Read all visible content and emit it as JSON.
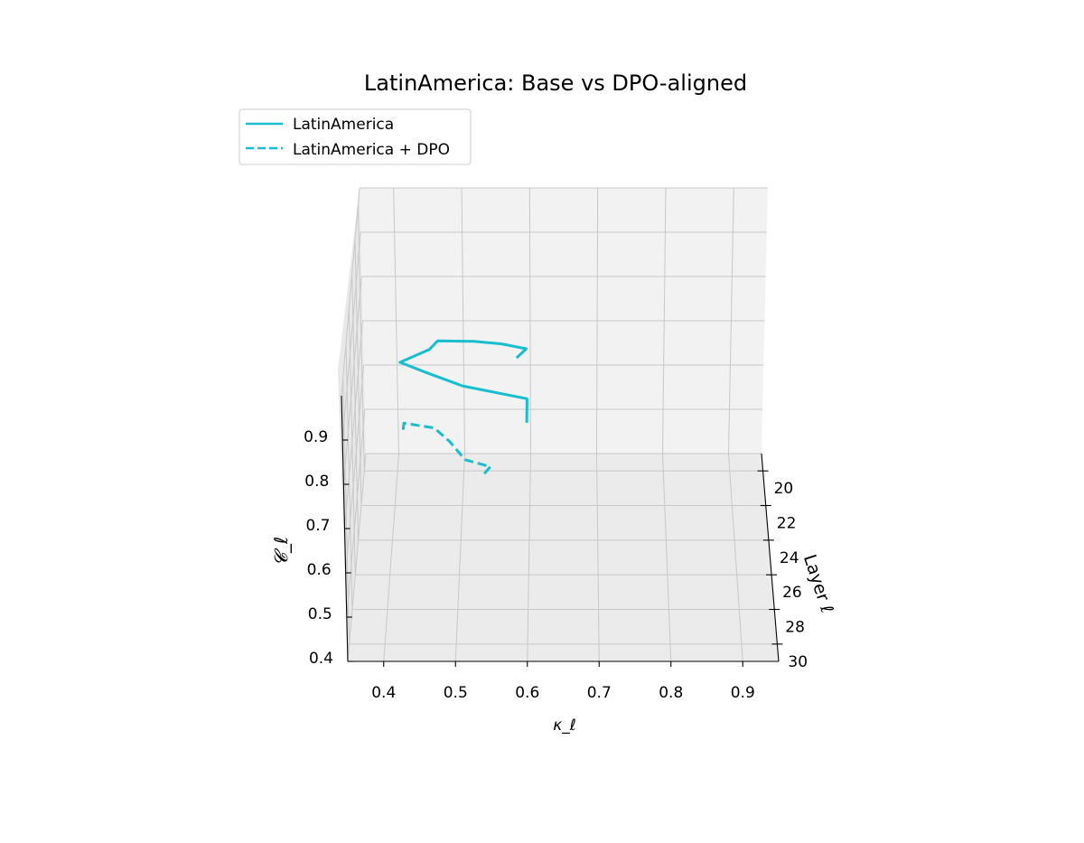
{
  "chart_data": {
    "type": "line",
    "projection": "3d",
    "title": "LatinAmerica: Base vs DPO-aligned",
    "xlabel": "κ_ℓ",
    "ylabel": "Layer ℓ",
    "zlabel": "𝓒_ℓ",
    "xlim": [
      0.35,
      0.95
    ],
    "ylim": [
      19,
      31
    ],
    "zlim": [
      0.4,
      1.0
    ],
    "xticks": [
      "0.4",
      "0.5",
      "0.6",
      "0.7",
      "0.8",
      "0.9"
    ],
    "yticks": [
      "20",
      "22",
      "24",
      "26",
      "28",
      "30"
    ],
    "zticks": [
      "0.4",
      "0.5",
      "0.6",
      "0.7",
      "0.8",
      "0.9"
    ],
    "grid": true,
    "legend_position": "top-left",
    "series": [
      {
        "name": "LatinAmerica",
        "color": "#17becf",
        "style": "solid",
        "layers": [
          20,
          21,
          22,
          23,
          24,
          25,
          26,
          27,
          28,
          29,
          30
        ],
        "kappa": [
          0.58,
          0.595,
          0.56,
          0.52,
          0.47,
          0.46,
          0.42,
          0.46,
          0.51,
          0.6,
          0.6
        ],
        "c": [
          0.655,
          0.715,
          0.765,
          0.81,
          0.85,
          0.87,
          0.88,
          0.895,
          0.905,
          0.915,
          0.9
        ]
      },
      {
        "name": "LatinAmerica + DPO",
        "color": "#17becf",
        "style": "dashed",
        "layers": [
          24,
          25,
          26,
          27,
          28,
          29,
          30
        ],
        "kappa": [
          0.535,
          0.545,
          0.51,
          0.49,
          0.47,
          0.43,
          0.43
        ],
        "c": [
          0.55,
          0.605,
          0.66,
          0.74,
          0.81,
          0.86,
          0.875
        ]
      }
    ]
  }
}
